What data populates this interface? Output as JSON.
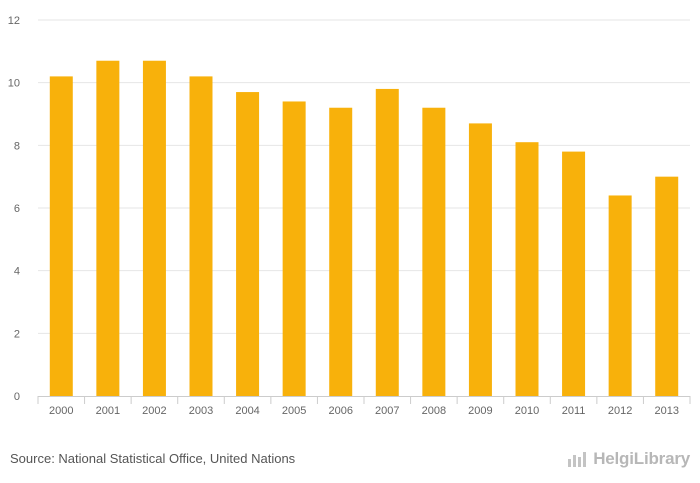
{
  "chart_data": {
    "type": "bar",
    "title": "",
    "xlabel": "",
    "ylabel": "",
    "categories": [
      "2000",
      "2001",
      "2002",
      "2003",
      "2004",
      "2005",
      "2006",
      "2007",
      "2008",
      "2009",
      "2010",
      "2011",
      "2012",
      "2013"
    ],
    "values": [
      10.2,
      10.7,
      10.7,
      10.2,
      9.7,
      9.4,
      9.2,
      9.8,
      9.2,
      8.7,
      8.1,
      7.8,
      6.4,
      7.0
    ],
    "ylim": [
      0,
      12
    ],
    "yticks": [
      0,
      2,
      4,
      6,
      8,
      10,
      12
    ],
    "grid": true,
    "bar_color": "#f8b10b",
    "grid_color": "#e6e6e6",
    "axis_color": "#cccccc",
    "label_color": "#666666"
  },
  "footer": {
    "source": "Source: National Statistical Office, United Nations",
    "brand": "HelgiLibrary",
    "brand_icon": "bar-chart-icon"
  }
}
